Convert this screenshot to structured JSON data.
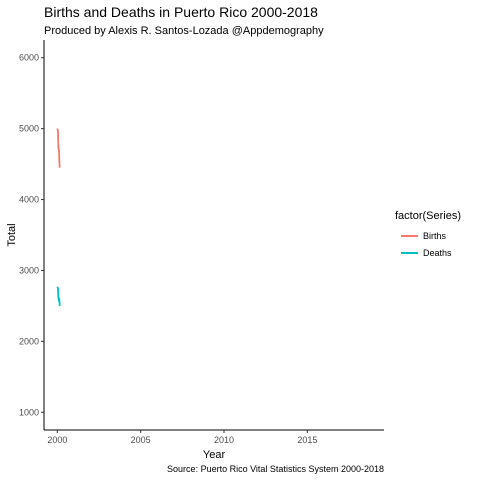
{
  "chart_data": {
    "type": "line",
    "title": "Births and Deaths in Puerto Rico 2000-2018",
    "subtitle": "Produced by Alexis R. Santos-Lozada @Appdemography",
    "caption": "Source: Puerto Rico Vital Statistics System 2000-2018",
    "xlabel": "Year",
    "ylabel": "Total",
    "xlim": [
      1999.2,
      2019.6
    ],
    "ylim": [
      750,
      6250
    ],
    "x_ticks": [
      2000,
      2005,
      2010,
      2015
    ],
    "y_ticks": [
      1000,
      2000,
      3000,
      4000,
      5000,
      6000
    ],
    "grid": false,
    "legend": {
      "title": "factor(Series)",
      "position": "right"
    },
    "series": [
      {
        "name": "Births",
        "color": "#F8766D",
        "x": [
          2000.0,
          2000.02,
          2000.04,
          2000.06,
          2000.08,
          2000.1,
          2000.12,
          2000.14
        ],
        "y": [
          5000,
          4980,
          4960,
          4730,
          4720,
          4700,
          4550,
          4450
        ]
      },
      {
        "name": "Deaths",
        "color": "#00BFC4",
        "x": [
          2000.0,
          2000.02,
          2000.04,
          2000.06,
          2000.08,
          2000.1,
          2000.12,
          2000.14
        ],
        "y": [
          2770,
          2760,
          2740,
          2620,
          2600,
          2570,
          2600,
          2500
        ]
      }
    ]
  }
}
